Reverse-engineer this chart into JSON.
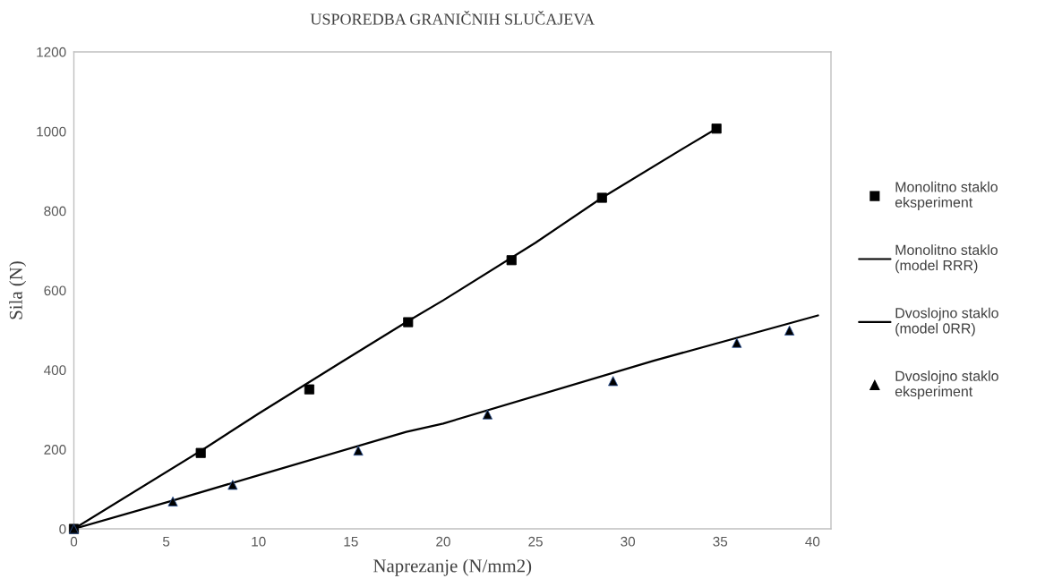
{
  "chart_data": {
    "type": "scatter",
    "title": "USPOREDBA GRANIČNIH SLUČAJEVA",
    "xlabel": "Naprezanje (N/mm2)",
    "ylabel": "Sila (N)",
    "xlim": [
      0,
      41
    ],
    "xticks": [
      0,
      5,
      10,
      15,
      20,
      25,
      30,
      35,
      40
    ],
    "ylim": [
      0,
      1200
    ],
    "yticks": [
      0,
      200,
      400,
      600,
      800,
      1000,
      1200
    ],
    "grid": false,
    "legend": "right",
    "series": [
      {
        "name": "Monolitno staklo eksperiment",
        "marker": "square",
        "color": "#000000",
        "x": [
          0,
          6.87,
          12.75,
          18.1,
          23.7,
          28.6,
          34.8
        ],
        "values": [
          0,
          191,
          351,
          520,
          676,
          833,
          1007
        ]
      },
      {
        "name": "Monolitno staklo (model RRR)",
        "type": "line",
        "marker": "none",
        "color": "#000000",
        "x": [
          0,
          7,
          10,
          14.5,
          18,
          20,
          25,
          28.6,
          33.1,
          34.8
        ],
        "values": [
          0,
          200,
          290,
          420,
          520,
          575,
          720,
          833,
          960,
          1007
        ]
      },
      {
        "name": "Dvoslojno staklo (model 0RR)",
        "type": "line",
        "marker": "none",
        "color": "#000000",
        "x": [
          0,
          5.4,
          10,
          18,
          20,
          31.4,
          40.3
        ],
        "values": [
          0,
          72,
          135,
          244,
          265,
          423,
          537
        ]
      },
      {
        "name": "Dvoslojno staklo eksperiment",
        "marker": "triangle",
        "color": "#000000",
        "x": [
          0,
          5.36,
          8.6,
          15.4,
          22.4,
          29.2,
          35.9,
          38.75
        ],
        "values": [
          0,
          69,
          111,
          197,
          288,
          372,
          468,
          499
        ]
      }
    ]
  }
}
